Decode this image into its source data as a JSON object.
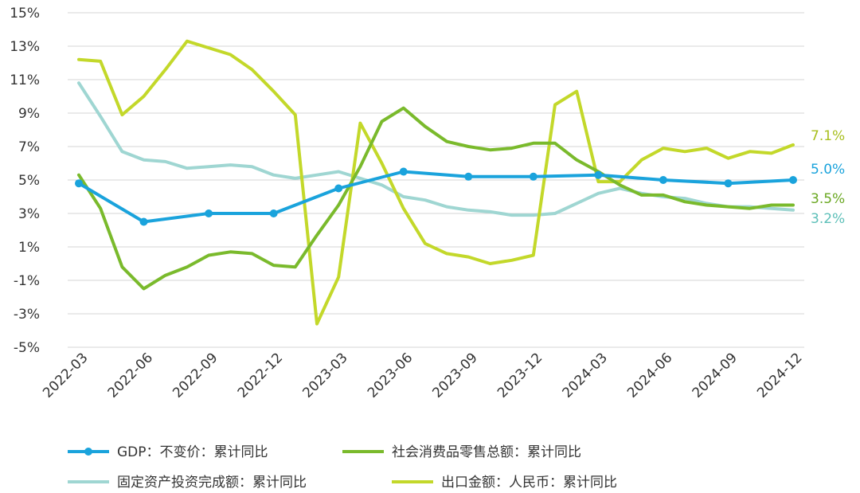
{
  "chart_data": {
    "type": "line",
    "title": "",
    "xlabel": "",
    "ylabel": "",
    "ylim": [
      -5,
      15
    ],
    "y_ticks": [
      -5,
      -3,
      -1,
      1,
      3,
      5,
      7,
      9,
      11,
      13,
      15
    ],
    "y_tick_labels": [
      "-5%",
      "-3%",
      "-1%",
      "1%",
      "3%",
      "5%",
      "7%",
      "9%",
      "11%",
      "13%",
      "15%"
    ],
    "grid": "horizontal",
    "legend_position": "bottom",
    "x": [
      "2022-03",
      "2022-04",
      "2022-05",
      "2022-06",
      "2022-07",
      "2022-08",
      "2022-09",
      "2022-10",
      "2022-11",
      "2022-12",
      "2023-01",
      "2023-02",
      "2023-03",
      "2023-04",
      "2023-05",
      "2023-06",
      "2023-07",
      "2023-08",
      "2023-09",
      "2023-10",
      "2023-11",
      "2023-12",
      "2024-01",
      "2024-02",
      "2024-03",
      "2024-04",
      "2024-05",
      "2024-06",
      "2024-07",
      "2024-08",
      "2024-09",
      "2024-10",
      "2024-11",
      "2024-12"
    ],
    "x_tick_labels": [
      "2022-03",
      "2022-06",
      "2022-09",
      "2022-12",
      "2023-03",
      "2023-06",
      "2023-09",
      "2023-12",
      "2024-03",
      "2024-06",
      "2024-09",
      "2024-12"
    ],
    "series": [
      {
        "name": "固定资产投资完成额：累计同比",
        "color": "#9fd6d2",
        "values": [
          10.8,
          8.8,
          6.7,
          6.2,
          6.1,
          5.7,
          5.8,
          5.9,
          5.8,
          5.3,
          5.1,
          5.3,
          5.5,
          5.1,
          4.7,
          4.0,
          3.8,
          3.4,
          3.2,
          3.1,
          2.9,
          2.9,
          3.0,
          3.6,
          4.2,
          4.5,
          4.2,
          4.0,
          3.9,
          3.6,
          3.4,
          3.4,
          3.3,
          3.2
        ],
        "end_label": "3.2%",
        "end_label_color": "#5cbfb8"
      },
      {
        "name": "出口金额：人民币：累计同比",
        "color": "#c3d82a",
        "values": [
          12.2,
          12.1,
          8.9,
          10.0,
          11.6,
          13.3,
          12.9,
          12.5,
          11.6,
          10.3,
          8.9,
          -3.6,
          -0.8,
          8.4,
          6.0,
          3.3,
          1.2,
          0.6,
          0.4,
          0.0,
          0.2,
          0.5,
          9.5,
          10.3,
          4.9,
          4.9,
          6.2,
          6.9,
          6.7,
          6.9,
          6.3,
          6.7,
          6.6,
          7.1
        ],
        "end_label": "7.1%",
        "end_label_color": "#a8bf1d"
      },
      {
        "name": "社会消费品零售总额：累计同比",
        "color": "#7aba2c",
        "values": [
          5.3,
          3.3,
          -0.2,
          -1.5,
          -0.7,
          -0.2,
          0.5,
          0.7,
          0.6,
          -0.1,
          -0.2,
          1.7,
          3.5,
          5.8,
          8.5,
          9.3,
          8.2,
          7.3,
          7.0,
          6.8,
          6.9,
          7.2,
          7.2,
          6.2,
          5.5,
          4.7,
          4.1,
          4.1,
          3.7,
          3.5,
          3.4,
          3.3,
          3.5,
          3.5
        ],
        "end_label": "3.5%",
        "end_label_color": "#6aa822"
      },
      {
        "name": "GDP：不变价：累计同比",
        "color": "#1aa3dc",
        "values": [
          4.8,
          null,
          null,
          2.5,
          null,
          null,
          3.0,
          null,
          null,
          3.0,
          null,
          null,
          4.5,
          null,
          null,
          5.5,
          null,
          null,
          5.2,
          null,
          null,
          5.2,
          null,
          null,
          5.3,
          null,
          null,
          5.0,
          null,
          null,
          4.8,
          null,
          null,
          5.0
        ],
        "end_label": "5.0%",
        "end_label_color": "#1aa3dc",
        "markers": true
      }
    ]
  },
  "legend": {
    "items": [
      {
        "label": "GDP：不变价：累计同比",
        "color": "#1aa3dc",
        "marker": true
      },
      {
        "label": "社会消费品零售总额：累计同比",
        "color": "#7aba2c",
        "marker": false
      },
      {
        "label": "固定资产投资完成额：累计同比",
        "color": "#9fd6d2",
        "marker": false
      },
      {
        "label": "出口金额：人民币：累计同比",
        "color": "#c3d82a",
        "marker": false
      }
    ]
  }
}
